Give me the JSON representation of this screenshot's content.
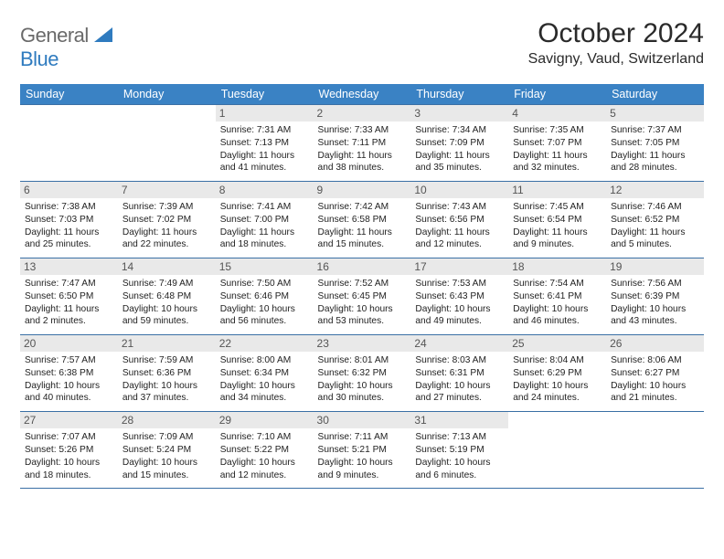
{
  "logo": {
    "word1": "General",
    "word2": "Blue"
  },
  "title": "October 2024",
  "location": "Savigny, Vaud, Switzerland",
  "colors": {
    "header_bg": "#3a82c4",
    "header_text": "#ffffff",
    "daynum_bg": "#e9e9e9",
    "daynum_text": "#555555",
    "border": "#3a6fa5",
    "logo_gray": "#6a6a6a",
    "logo_blue": "#2f7bbf",
    "body_text": "#222222",
    "background": "#ffffff"
  },
  "dow": [
    "Sunday",
    "Monday",
    "Tuesday",
    "Wednesday",
    "Thursday",
    "Friday",
    "Saturday"
  ],
  "weeks": [
    [
      {
        "n": "",
        "sr": "",
        "ss": "",
        "dl": ""
      },
      {
        "n": "",
        "sr": "",
        "ss": "",
        "dl": ""
      },
      {
        "n": "1",
        "sr": "Sunrise: 7:31 AM",
        "ss": "Sunset: 7:13 PM",
        "dl": "Daylight: 11 hours and 41 minutes."
      },
      {
        "n": "2",
        "sr": "Sunrise: 7:33 AM",
        "ss": "Sunset: 7:11 PM",
        "dl": "Daylight: 11 hours and 38 minutes."
      },
      {
        "n": "3",
        "sr": "Sunrise: 7:34 AM",
        "ss": "Sunset: 7:09 PM",
        "dl": "Daylight: 11 hours and 35 minutes."
      },
      {
        "n": "4",
        "sr": "Sunrise: 7:35 AM",
        "ss": "Sunset: 7:07 PM",
        "dl": "Daylight: 11 hours and 32 minutes."
      },
      {
        "n": "5",
        "sr": "Sunrise: 7:37 AM",
        "ss": "Sunset: 7:05 PM",
        "dl": "Daylight: 11 hours and 28 minutes."
      }
    ],
    [
      {
        "n": "6",
        "sr": "Sunrise: 7:38 AM",
        "ss": "Sunset: 7:03 PM",
        "dl": "Daylight: 11 hours and 25 minutes."
      },
      {
        "n": "7",
        "sr": "Sunrise: 7:39 AM",
        "ss": "Sunset: 7:02 PM",
        "dl": "Daylight: 11 hours and 22 minutes."
      },
      {
        "n": "8",
        "sr": "Sunrise: 7:41 AM",
        "ss": "Sunset: 7:00 PM",
        "dl": "Daylight: 11 hours and 18 minutes."
      },
      {
        "n": "9",
        "sr": "Sunrise: 7:42 AM",
        "ss": "Sunset: 6:58 PM",
        "dl": "Daylight: 11 hours and 15 minutes."
      },
      {
        "n": "10",
        "sr": "Sunrise: 7:43 AM",
        "ss": "Sunset: 6:56 PM",
        "dl": "Daylight: 11 hours and 12 minutes."
      },
      {
        "n": "11",
        "sr": "Sunrise: 7:45 AM",
        "ss": "Sunset: 6:54 PM",
        "dl": "Daylight: 11 hours and 9 minutes."
      },
      {
        "n": "12",
        "sr": "Sunrise: 7:46 AM",
        "ss": "Sunset: 6:52 PM",
        "dl": "Daylight: 11 hours and 5 minutes."
      }
    ],
    [
      {
        "n": "13",
        "sr": "Sunrise: 7:47 AM",
        "ss": "Sunset: 6:50 PM",
        "dl": "Daylight: 11 hours and 2 minutes."
      },
      {
        "n": "14",
        "sr": "Sunrise: 7:49 AM",
        "ss": "Sunset: 6:48 PM",
        "dl": "Daylight: 10 hours and 59 minutes."
      },
      {
        "n": "15",
        "sr": "Sunrise: 7:50 AM",
        "ss": "Sunset: 6:46 PM",
        "dl": "Daylight: 10 hours and 56 minutes."
      },
      {
        "n": "16",
        "sr": "Sunrise: 7:52 AM",
        "ss": "Sunset: 6:45 PM",
        "dl": "Daylight: 10 hours and 53 minutes."
      },
      {
        "n": "17",
        "sr": "Sunrise: 7:53 AM",
        "ss": "Sunset: 6:43 PM",
        "dl": "Daylight: 10 hours and 49 minutes."
      },
      {
        "n": "18",
        "sr": "Sunrise: 7:54 AM",
        "ss": "Sunset: 6:41 PM",
        "dl": "Daylight: 10 hours and 46 minutes."
      },
      {
        "n": "19",
        "sr": "Sunrise: 7:56 AM",
        "ss": "Sunset: 6:39 PM",
        "dl": "Daylight: 10 hours and 43 minutes."
      }
    ],
    [
      {
        "n": "20",
        "sr": "Sunrise: 7:57 AM",
        "ss": "Sunset: 6:38 PM",
        "dl": "Daylight: 10 hours and 40 minutes."
      },
      {
        "n": "21",
        "sr": "Sunrise: 7:59 AM",
        "ss": "Sunset: 6:36 PM",
        "dl": "Daylight: 10 hours and 37 minutes."
      },
      {
        "n": "22",
        "sr": "Sunrise: 8:00 AM",
        "ss": "Sunset: 6:34 PM",
        "dl": "Daylight: 10 hours and 34 minutes."
      },
      {
        "n": "23",
        "sr": "Sunrise: 8:01 AM",
        "ss": "Sunset: 6:32 PM",
        "dl": "Daylight: 10 hours and 30 minutes."
      },
      {
        "n": "24",
        "sr": "Sunrise: 8:03 AM",
        "ss": "Sunset: 6:31 PM",
        "dl": "Daylight: 10 hours and 27 minutes."
      },
      {
        "n": "25",
        "sr": "Sunrise: 8:04 AM",
        "ss": "Sunset: 6:29 PM",
        "dl": "Daylight: 10 hours and 24 minutes."
      },
      {
        "n": "26",
        "sr": "Sunrise: 8:06 AM",
        "ss": "Sunset: 6:27 PM",
        "dl": "Daylight: 10 hours and 21 minutes."
      }
    ],
    [
      {
        "n": "27",
        "sr": "Sunrise: 7:07 AM",
        "ss": "Sunset: 5:26 PM",
        "dl": "Daylight: 10 hours and 18 minutes."
      },
      {
        "n": "28",
        "sr": "Sunrise: 7:09 AM",
        "ss": "Sunset: 5:24 PM",
        "dl": "Daylight: 10 hours and 15 minutes."
      },
      {
        "n": "29",
        "sr": "Sunrise: 7:10 AM",
        "ss": "Sunset: 5:22 PM",
        "dl": "Daylight: 10 hours and 12 minutes."
      },
      {
        "n": "30",
        "sr": "Sunrise: 7:11 AM",
        "ss": "Sunset: 5:21 PM",
        "dl": "Daylight: 10 hours and 9 minutes."
      },
      {
        "n": "31",
        "sr": "Sunrise: 7:13 AM",
        "ss": "Sunset: 5:19 PM",
        "dl": "Daylight: 10 hours and 6 minutes."
      },
      {
        "n": "",
        "sr": "",
        "ss": "",
        "dl": ""
      },
      {
        "n": "",
        "sr": "",
        "ss": "",
        "dl": ""
      }
    ]
  ]
}
